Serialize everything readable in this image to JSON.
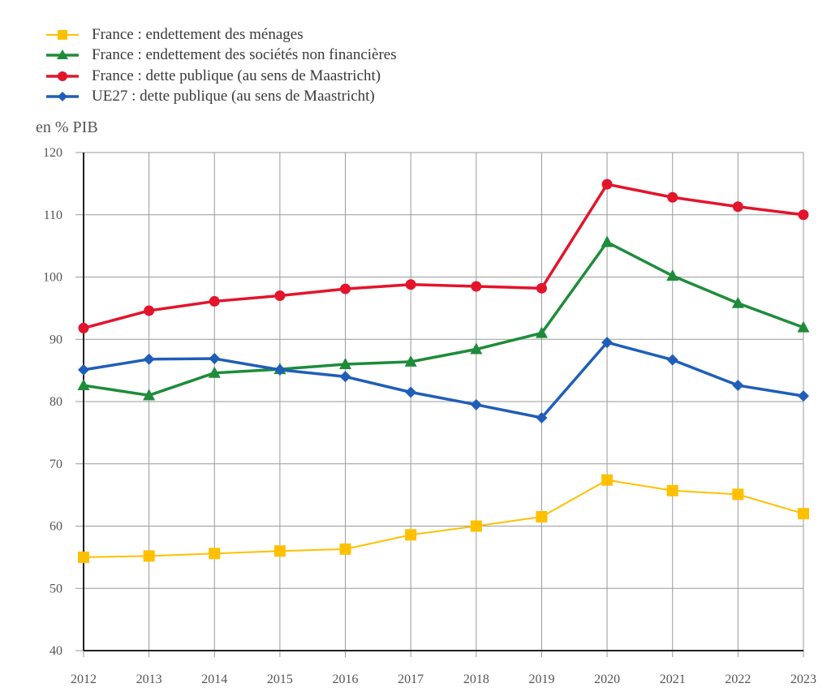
{
  "chart_data": {
    "type": "line",
    "title": "",
    "xlabel": "",
    "ylabel": "en % PIB",
    "ylim": [
      40,
      120
    ],
    "yticks": [
      40,
      50,
      60,
      70,
      80,
      90,
      100,
      110,
      120
    ],
    "grid": true,
    "legend_position": "top-left",
    "x": [
      "2012",
      "2013",
      "2014",
      "2015",
      "2016",
      "2017",
      "2018",
      "2019",
      "2020",
      "2021",
      "2022",
      "2023"
    ],
    "series": [
      {
        "name": "France : endettement des ménages",
        "color": "#FFC000",
        "marker": "square",
        "values": [
          55.0,
          55.2,
          55.6,
          56.0,
          56.3,
          58.6,
          60.0,
          61.5,
          67.4,
          65.7,
          65.1,
          62.0
        ]
      },
      {
        "name": "France : endettement des sociétés non financières",
        "color": "#1E8C3A",
        "marker": "triangle",
        "values": [
          82.6,
          81.0,
          84.6,
          85.2,
          86.0,
          86.4,
          88.4,
          91.0,
          105.6,
          100.2,
          95.8,
          91.9
        ]
      },
      {
        "name": "France : dette publique (au sens de Maastricht)",
        "color": "#E3142B",
        "marker": "circle",
        "values": [
          91.8,
          94.6,
          96.1,
          97.0,
          98.1,
          98.8,
          98.5,
          98.2,
          114.9,
          112.8,
          111.3,
          110.0
        ]
      },
      {
        "name": "UE27 : dette publique (au sens de Maastricht)",
        "color": "#1F5EB8",
        "marker": "diamond",
        "values": [
          85.1,
          86.8,
          86.9,
          85.1,
          84.0,
          81.5,
          79.5,
          77.4,
          89.5,
          86.7,
          82.6,
          80.9
        ]
      }
    ]
  }
}
